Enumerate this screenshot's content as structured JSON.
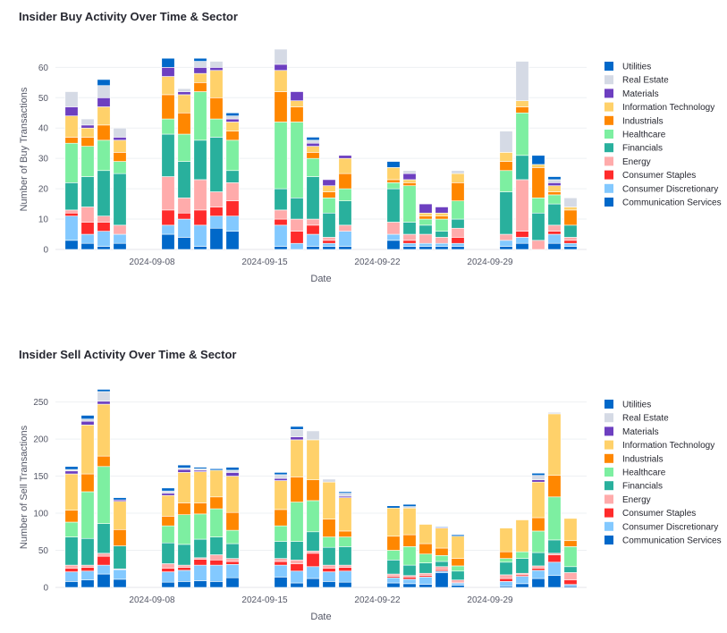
{
  "colors": {
    "Utilities": "#0068c9",
    "Real Estate": "#d5dae5",
    "Materials": "#6d3fc0",
    "Information Technology": "#ffd16a",
    "Industrials": "#ff8700",
    "Healthcare": "#7defa1",
    "Financials": "#29b09d",
    "Energy": "#ffabab",
    "Consumer Staples": "#ff2b2b",
    "Consumer Discretionary": "#83c9ff",
    "Communication Services": "#0068c9"
  },
  "chart_data": [
    {
      "type": "bar",
      "stacked": true,
      "title": "Insider Buy Activity Over Time & Sector",
      "xlabel": "Date",
      "ylabel": "Number of Buy Transactions",
      "ylim": [
        0,
        66
      ],
      "yticks": [
        0,
        10,
        20,
        30,
        40,
        50,
        60
      ],
      "xticks": [
        "2024-09-08",
        "2024-09-15",
        "2024-09-22",
        "2024-09-29"
      ],
      "legend_position": "right",
      "legend": [
        "Utilities",
        "Real Estate",
        "Materials",
        "Information Technology",
        "Industrials",
        "Healthcare",
        "Financials",
        "Energy",
        "Consumer Staples",
        "Consumer Discretionary",
        "Communication Services"
      ],
      "categories": [
        "2024-09-03",
        "2024-09-04",
        "2024-09-05",
        "2024-09-06",
        "2024-09-09",
        "2024-09-10",
        "2024-09-11",
        "2024-09-12",
        "2024-09-13",
        "2024-09-16",
        "2024-09-17",
        "2024-09-18",
        "2024-09-19",
        "2024-09-20",
        "2024-09-23",
        "2024-09-24",
        "2024-09-25",
        "2024-09-26",
        "2024-09-27",
        "2024-09-30",
        "2024-10-01",
        "2024-10-02",
        "2024-10-03",
        "2024-10-04"
      ],
      "series": [
        {
          "name": "Communication Services",
          "values": [
            3,
            2,
            1,
            2,
            5,
            4,
            1,
            7,
            6,
            1,
            0,
            1,
            1,
            1,
            3,
            1,
            1,
            1,
            1,
            1,
            2,
            0,
            2,
            1
          ]
        },
        {
          "name": "Consumer Discretionary",
          "values": [
            8,
            3,
            5,
            3,
            3,
            6,
            7,
            4,
            5,
            7,
            2,
            4,
            1,
            5,
            2,
            1,
            1,
            1,
            1,
            2,
            2,
            0,
            3,
            1
          ]
        },
        {
          "name": "Consumer Staples",
          "values": [
            1,
            4,
            3,
            0,
            5,
            2,
            5,
            3,
            5,
            2,
            4,
            3,
            1,
            0,
            0,
            1,
            0,
            0,
            2,
            0,
            2,
            0,
            1,
            1
          ]
        },
        {
          "name": "Energy",
          "values": [
            1,
            5,
            2,
            3,
            11,
            5,
            10,
            5,
            6,
            3,
            4,
            2,
            1,
            2,
            4,
            2,
            3,
            2,
            3,
            2,
            17,
            3,
            2,
            1
          ]
        },
        {
          "name": "Financials",
          "values": [
            9,
            10,
            15,
            17,
            14,
            12,
            13,
            18,
            4,
            7,
            7,
            14,
            8,
            8,
            11,
            4,
            3,
            2,
            3,
            14,
            8,
            9,
            7,
            4
          ]
        },
        {
          "name": "Healthcare",
          "values": [
            13,
            10,
            10,
            4,
            5,
            9,
            16,
            6,
            10,
            22,
            25,
            6,
            5,
            4,
            2,
            12,
            2,
            4,
            6,
            7,
            14,
            5,
            3,
            0
          ]
        },
        {
          "name": "Industrials",
          "values": [
            2,
            3,
            5,
            3,
            8,
            7,
            3,
            7,
            3,
            10,
            5,
            2,
            2,
            5,
            1,
            1,
            1,
            1,
            6,
            3,
            2,
            10,
            1,
            5
          ]
        },
        {
          "name": "Information Technology",
          "values": [
            7,
            3,
            6,
            4,
            6,
            6,
            3,
            9,
            3,
            7,
            2,
            2,
            2,
            5,
            4,
            1,
            1,
            1,
            3,
            3,
            2,
            1,
            2,
            1
          ]
        },
        {
          "name": "Materials",
          "values": [
            3,
            1,
            3,
            1,
            3,
            1,
            2,
            1,
            1,
            2,
            3,
            1,
            2,
            1,
            0,
            2,
            3,
            2,
            0,
            0,
            0,
            0,
            1,
            0
          ]
        },
        {
          "name": "Real Estate",
          "values": [
            5,
            2,
            4,
            3,
            0,
            1,
            2,
            2,
            1,
            5,
            0,
            1,
            0,
            0,
            0,
            1,
            0,
            0,
            1,
            7,
            13,
            0,
            1,
            3
          ]
        },
        {
          "name": "Utilities",
          "values": [
            0,
            0,
            2,
            0,
            3,
            0,
            1,
            0,
            1,
            0,
            0,
            1,
            0,
            0,
            2,
            0,
            0,
            0,
            0,
            0,
            0,
            3,
            1,
            0
          ]
        }
      ]
    },
    {
      "type": "bar",
      "stacked": true,
      "title": "Insider Sell Activity Over Time & Sector",
      "xlabel": "Date",
      "ylabel": "Number of Sell Transactions",
      "ylim": [
        0,
        270
      ],
      "yticks": [
        0,
        50,
        100,
        150,
        200,
        250
      ],
      "xticks": [
        "2024-09-08",
        "2024-09-15",
        "2024-09-22",
        "2024-09-29"
      ],
      "legend_position": "right",
      "legend": [
        "Utilities",
        "Real Estate",
        "Materials",
        "Information Technology",
        "Industrials",
        "Healthcare",
        "Financials",
        "Energy",
        "Consumer Staples",
        "Consumer Discretionary",
        "Communication Services"
      ],
      "categories": [
        "2024-09-03",
        "2024-09-04",
        "2024-09-05",
        "2024-09-06",
        "2024-09-09",
        "2024-09-10",
        "2024-09-11",
        "2024-09-12",
        "2024-09-13",
        "2024-09-16",
        "2024-09-17",
        "2024-09-18",
        "2024-09-19",
        "2024-09-20",
        "2024-09-23",
        "2024-09-24",
        "2024-09-25",
        "2024-09-26",
        "2024-09-27",
        "2024-09-30",
        "2024-10-01",
        "2024-10-02",
        "2024-10-03",
        "2024-10-04"
      ],
      "series": [
        {
          "name": "Communication Services",
          "values": [
            8,
            10,
            18,
            11,
            7,
            8,
            9,
            8,
            13,
            14,
            6,
            12,
            8,
            7,
            6,
            5,
            4,
            20,
            3,
            2,
            5,
            12,
            16,
            2
          ]
        },
        {
          "name": "Consumer Discretionary",
          "values": [
            13,
            12,
            12,
            13,
            14,
            15,
            21,
            22,
            18,
            16,
            16,
            16,
            13,
            15,
            7,
            6,
            10,
            2,
            3,
            6,
            10,
            11,
            18,
            2
          ]
        },
        {
          "name": "Consumer Staples",
          "values": [
            5,
            5,
            12,
            0,
            5,
            4,
            8,
            7,
            4,
            5,
            10,
            18,
            5,
            5,
            2,
            3,
            2,
            2,
            1,
            4,
            2,
            3,
            10,
            6
          ]
        },
        {
          "name": "Energy",
          "values": [
            4,
            3,
            4,
            1,
            6,
            3,
            2,
            7,
            4,
            4,
            5,
            3,
            4,
            3,
            3,
            2,
            3,
            4,
            3,
            5,
            2,
            3,
            2,
            10
          ]
        },
        {
          "name": "Financials",
          "values": [
            38,
            36,
            40,
            31,
            28,
            28,
            25,
            24,
            20,
            23,
            25,
            26,
            24,
            25,
            19,
            14,
            14,
            7,
            12,
            17,
            20,
            18,
            18,
            8
          ]
        },
        {
          "name": "Healthcare",
          "values": [
            20,
            63,
            77,
            0,
            23,
            40,
            34,
            38,
            18,
            21,
            53,
            42,
            14,
            13,
            13,
            25,
            12,
            8,
            7,
            5,
            9,
            29,
            58,
            27
          ]
        },
        {
          "name": "Industrials",
          "values": [
            16,
            24,
            14,
            22,
            13,
            16,
            15,
            16,
            24,
            22,
            34,
            28,
            24,
            8,
            19,
            16,
            14,
            10,
            10,
            9,
            0,
            18,
            29,
            8
          ]
        },
        {
          "name": "Information Technology",
          "values": [
            49,
            66,
            70,
            38,
            28,
            41,
            42,
            36,
            49,
            39,
            50,
            54,
            50,
            45,
            38,
            36,
            26,
            27,
            30,
            32,
            43,
            48,
            83,
            30
          ]
        },
        {
          "name": "Materials",
          "values": [
            4,
            5,
            4,
            2,
            3,
            4,
            2,
            0,
            5,
            3,
            4,
            0,
            0,
            2,
            0,
            0,
            0,
            1,
            0,
            0,
            0,
            3,
            0,
            0
          ]
        },
        {
          "name": "Real Estate",
          "values": [
            2,
            3,
            13,
            0,
            3,
            2,
            2,
            0,
            3,
            5,
            10,
            12,
            4,
            4,
            0,
            2,
            0,
            0,
            0,
            0,
            0,
            6,
            2,
            0
          ]
        },
        {
          "name": "Utilities",
          "values": [
            4,
            5,
            3,
            3,
            4,
            4,
            2,
            2,
            4,
            3,
            4,
            0,
            0,
            2,
            3,
            3,
            0,
            1,
            2,
            0,
            0,
            3,
            0,
            0
          ]
        }
      ]
    }
  ]
}
